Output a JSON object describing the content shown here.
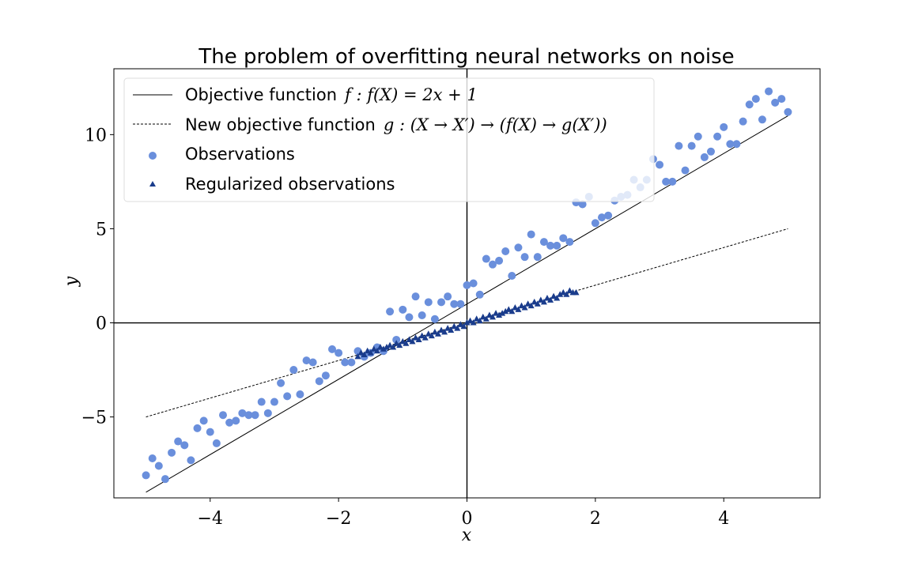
{
  "chart_data": {
    "type": "scatter",
    "title": "The problem of overfitting neural networks on noise",
    "xlabel": "x",
    "ylabel": "y",
    "xlim": [
      -5.5,
      5.5
    ],
    "ylim": [
      -9.3,
      13.5
    ],
    "x_ticks": [
      -4,
      -2,
      0,
      2,
      4
    ],
    "y_ticks": [
      -5,
      0,
      5,
      10
    ],
    "x_tick_labels": [
      "−4",
      "−2",
      "0",
      "2",
      "4"
    ],
    "y_tick_labels": [
      "−5",
      "0",
      "5",
      "10"
    ],
    "grid": false,
    "legend_position": "top-left",
    "colors": {
      "observations": "#6a8fdc",
      "regularized": "#1a3c8c",
      "objective": "#000000",
      "new_objective": "#000000",
      "zero_axes": "#000000"
    },
    "series": [
      {
        "name": "Objective function",
        "name_math": "f : f(X) = 2x + 1",
        "kind": "line",
        "style": "solid",
        "x": [
          -5,
          5
        ],
        "y": [
          -9,
          11
        ]
      },
      {
        "name": "New objective function",
        "name_math": "g : (X → X′) → (f(X) → g(X′))",
        "kind": "line",
        "style": "dashed",
        "x": [
          -5,
          5
        ],
        "y": [
          -5,
          5
        ]
      },
      {
        "name": "Observations",
        "kind": "scatter",
        "marker": "circle",
        "x": [
          -5.0,
          -4.9,
          -4.8,
          -4.7,
          -4.6,
          -4.5,
          -4.4,
          -4.3,
          -4.2,
          -4.1,
          -4.0,
          -3.9,
          -3.8,
          -3.7,
          -3.6,
          -3.5,
          -3.4,
          -3.3,
          -3.2,
          -3.1,
          -3.0,
          -2.9,
          -2.8,
          -2.7,
          -2.6,
          -2.5,
          -2.4,
          -2.3,
          -2.2,
          -2.1,
          -2.0,
          -1.9,
          -1.8,
          -1.7,
          -1.6,
          -1.5,
          -1.4,
          -1.3,
          -1.2,
          -1.1,
          -1.0,
          -0.9,
          -0.8,
          -0.7,
          -0.6,
          -0.5,
          -0.4,
          -0.3,
          -0.2,
          -0.1,
          0.0,
          0.1,
          0.2,
          0.3,
          0.4,
          0.5,
          0.6,
          0.7,
          0.8,
          0.9,
          1.0,
          1.1,
          1.2,
          1.3,
          1.4,
          1.5,
          1.6,
          1.7,
          1.8,
          1.9,
          2.0,
          2.1,
          2.2,
          2.3,
          2.4,
          2.5,
          2.6,
          2.7,
          2.8,
          2.9,
          3.0,
          3.1,
          3.2,
          3.3,
          3.4,
          3.5,
          3.6,
          3.7,
          3.8,
          3.9,
          4.0,
          4.1,
          4.2,
          4.3,
          4.4,
          4.5,
          4.6,
          4.7,
          4.8,
          4.9,
          5.0
        ],
        "y": [
          -8.1,
          -7.2,
          -7.6,
          -8.3,
          -6.9,
          -6.3,
          -6.5,
          -7.3,
          -5.6,
          -5.2,
          -5.8,
          -6.4,
          -4.9,
          -5.3,
          -5.2,
          -4.8,
          -4.9,
          -4.9,
          -4.2,
          -4.8,
          -4.2,
          -3.2,
          -3.9,
          -2.5,
          -3.8,
          -2.0,
          -2.1,
          -3.1,
          -2.8,
          -1.4,
          -1.6,
          -2.1,
          -2.1,
          -1.5,
          -1.8,
          -1.6,
          -1.3,
          -1.5,
          0.6,
          -0.9,
          0.7,
          0.3,
          1.4,
          0.4,
          1.1,
          0.2,
          1.1,
          1.4,
          1.0,
          1.0,
          2.0,
          2.1,
          1.5,
          3.4,
          3.1,
          3.3,
          3.8,
          2.5,
          4.0,
          3.5,
          4.7,
          3.5,
          4.3,
          4.1,
          4.1,
          4.5,
          4.3,
          6.4,
          6.3,
          6.7,
          5.3,
          5.6,
          5.7,
          6.5,
          6.7,
          6.8,
          7.6,
          7.2,
          7.6,
          8.7,
          8.4,
          7.5,
          7.5,
          9.4,
          8.1,
          9.4,
          9.9,
          8.8,
          9.1,
          9.9,
          10.4,
          9.5,
          9.5,
          10.7,
          11.6,
          11.9,
          10.8,
          12.3,
          11.7,
          11.9,
          11.2
        ]
      },
      {
        "name": "Regularized observations",
        "kind": "scatter",
        "marker": "triangle",
        "x": [
          -1.7,
          -1.65,
          -1.6,
          -1.55,
          -1.5,
          -1.45,
          -1.4,
          -1.35,
          -1.3,
          -1.25,
          -1.2,
          -1.15,
          -1.1,
          -1.05,
          -1.0,
          -0.95,
          -0.9,
          -0.85,
          -0.8,
          -0.75,
          -0.7,
          -0.65,
          -0.6,
          -0.55,
          -0.5,
          -0.45,
          -0.4,
          -0.35,
          -0.3,
          -0.25,
          -0.2,
          -0.15,
          -0.1,
          -0.05,
          0.0,
          0.05,
          0.1,
          0.15,
          0.2,
          0.25,
          0.3,
          0.35,
          0.4,
          0.45,
          0.5,
          0.55,
          0.6,
          0.65,
          0.7,
          0.75,
          0.8,
          0.85,
          0.9,
          0.95,
          1.0,
          1.05,
          1.1,
          1.15,
          1.2,
          1.25,
          1.3,
          1.35,
          1.4,
          1.45,
          1.5,
          1.55,
          1.6,
          1.65,
          1.7
        ],
        "y": [
          -1.8,
          -1.6,
          -1.7,
          -1.5,
          -1.6,
          -1.4,
          -1.5,
          -1.3,
          -1.4,
          -1.3,
          -1.2,
          -1.3,
          -1.1,
          -1.2,
          -1.0,
          -1.1,
          -0.9,
          -1.0,
          -0.8,
          -0.9,
          -0.7,
          -0.8,
          -0.6,
          -0.7,
          -0.5,
          -0.6,
          -0.4,
          -0.5,
          -0.3,
          -0.4,
          -0.2,
          -0.3,
          -0.1,
          -0.2,
          0.0,
          0.1,
          0.0,
          0.2,
          0.1,
          0.3,
          0.2,
          0.4,
          0.3,
          0.5,
          0.4,
          0.5,
          0.6,
          0.7,
          0.6,
          0.8,
          0.7,
          0.9,
          0.8,
          1.0,
          0.9,
          1.1,
          1.0,
          1.2,
          1.1,
          1.3,
          1.2,
          1.4,
          1.3,
          1.5,
          1.6,
          1.5,
          1.7,
          1.6,
          1.6
        ]
      }
    ]
  }
}
